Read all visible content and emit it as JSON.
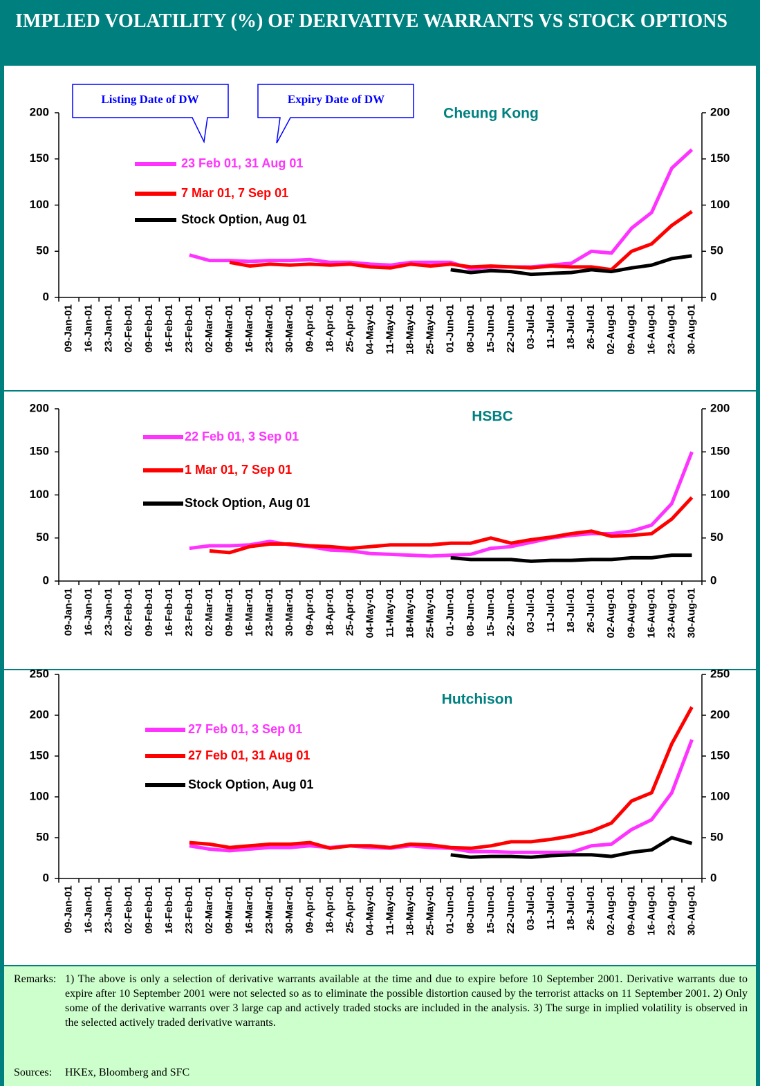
{
  "header": {
    "title": "IMPLIED VOLATILITY (%) OF DERIVATIVE WARRANTS VS STOCK OPTIONS"
  },
  "chart_data": [
    {
      "type": "line",
      "title": "Cheung Kong",
      "annotations": [
        "Listing Date of DW",
        "Expiry Date of DW"
      ],
      "categories": [
        "09-Jan-01",
        "16-Jan-01",
        "23-Jan-01",
        "02-Feb-01",
        "09-Feb-01",
        "16-Feb-01",
        "23-Feb-01",
        "02-Mar-01",
        "09-Mar-01",
        "16-Mar-01",
        "23-Mar-01",
        "30-Mar-01",
        "09-Apr-01",
        "18-Apr-01",
        "25-Apr-01",
        "04-May-01",
        "11-May-01",
        "18-May-01",
        "25-May-01",
        "01-Jun-01",
        "08-Jun-01",
        "15-Jun-01",
        "22-Jun-01",
        "03-Jul-01",
        "11-Jul-01",
        "18-Jul-01",
        "26-Jul-01",
        "02-Aug-01",
        "09-Aug-01",
        "16-Aug-01",
        "23-Aug-01",
        "30-Aug-01"
      ],
      "ylim": [
        0,
        200
      ],
      "yticks": [
        0,
        50,
        100,
        150,
        200
      ],
      "y2lim": [
        0,
        200
      ],
      "y2ticks": [
        0,
        50,
        100,
        150,
        200
      ],
      "series": [
        {
          "name": "23 Feb 01, 31 Aug 01",
          "color": "#ff33ff",
          "values": [
            null,
            null,
            null,
            null,
            null,
            null,
            46,
            40,
            40,
            39,
            40,
            40,
            41,
            38,
            38,
            36,
            35,
            38,
            38,
            38,
            31,
            33,
            33,
            33,
            35,
            37,
            50,
            48,
            75,
            92,
            140,
            160
          ]
        },
        {
          "name": "7 Mar 01, 7 Sep 01",
          "color": "#ff0000",
          "values": [
            null,
            null,
            null,
            null,
            null,
            null,
            null,
            null,
            38,
            34,
            36,
            35,
            36,
            35,
            36,
            33,
            32,
            36,
            34,
            36,
            33,
            34,
            33,
            32,
            34,
            33,
            33,
            30,
            50,
            58,
            78,
            93
          ]
        },
        {
          "name": "Stock Option,  Aug 01",
          "color": "#000000",
          "values": [
            null,
            null,
            null,
            null,
            null,
            null,
            null,
            null,
            null,
            null,
            null,
            null,
            null,
            null,
            null,
            null,
            null,
            null,
            null,
            30,
            27,
            29,
            28,
            25,
            26,
            27,
            30,
            28,
            32,
            35,
            42,
            45
          ]
        }
      ]
    },
    {
      "type": "line",
      "title": "HSBC",
      "categories": [
        "09-Jan-01",
        "16-Jan-01",
        "23-Jan-01",
        "02-Feb-01",
        "09-Feb-01",
        "16-Feb-01",
        "23-Feb-01",
        "02-Mar-01",
        "09-Mar-01",
        "16-Mar-01",
        "23-Mar-01",
        "30-Mar-01",
        "09-Apr-01",
        "18-Apr-01",
        "25-Apr-01",
        "04-May-01",
        "11-May-01",
        "18-May-01",
        "25-May-01",
        "01-Jun-01",
        "08-Jun-01",
        "15-Jun-01",
        "22-Jun-01",
        "03-Jul-01",
        "11-Jul-01",
        "18-Jul-01",
        "26-Jul-01",
        "02-Aug-01",
        "09-Aug-01",
        "16-Aug-01",
        "23-Aug-01",
        "30-Aug-01"
      ],
      "ylim": [
        0,
        200
      ],
      "yticks": [
        0,
        50,
        100,
        150,
        200
      ],
      "y2lim": [
        0,
        200
      ],
      "y2ticks": [
        0,
        50,
        100,
        150,
        200
      ],
      "series": [
        {
          "name": "22 Feb 01, 3 Sep 01",
          "color": "#ff33ff",
          "values": [
            null,
            null,
            null,
            null,
            null,
            null,
            38,
            41,
            41,
            42,
            46,
            42,
            40,
            36,
            35,
            32,
            31,
            30,
            29,
            30,
            31,
            38,
            40,
            45,
            50,
            53,
            55,
            55,
            58,
            65,
            90,
            150
          ]
        },
        {
          "name": "1 Mar 01, 7 Sep 01",
          "color": "#ff0000",
          "values": [
            null,
            null,
            null,
            null,
            null,
            null,
            null,
            35,
            33,
            40,
            43,
            43,
            41,
            40,
            38,
            40,
            42,
            42,
            42,
            44,
            44,
            50,
            44,
            48,
            51,
            55,
            58,
            52,
            53,
            55,
            72,
            97
          ]
        },
        {
          "name": "Stock Option, Aug 01",
          "color": "#000000",
          "values": [
            null,
            null,
            null,
            null,
            null,
            null,
            null,
            null,
            null,
            null,
            null,
            null,
            null,
            null,
            null,
            null,
            null,
            null,
            null,
            27,
            25,
            25,
            25,
            23,
            24,
            24,
            25,
            25,
            27,
            27,
            30,
            30
          ]
        }
      ]
    },
    {
      "type": "line",
      "title": "Hutchison",
      "categories": [
        "09-Jan-01",
        "16-Jan-01",
        "23-Jan-01",
        "02-Feb-01",
        "09-Feb-01",
        "16-Feb-01",
        "23-Feb-01",
        "02-Mar-01",
        "09-Mar-01",
        "16-Mar-01",
        "23-Mar-01",
        "30-Mar-01",
        "09-Apr-01",
        "18-Apr-01",
        "25-Apr-01",
        "04-May-01",
        "11-May-01",
        "18-May-01",
        "25-May-01",
        "01-Jun-01",
        "08-Jun-01",
        "15-Jun-01",
        "22-Jun-01",
        "03-Jul-01",
        "11-Jul-01",
        "18-Jul-01",
        "26-Jul-01",
        "02-Aug-01",
        "09-Aug-01",
        "16-Aug-01",
        "23-Aug-01",
        "30-Aug-01"
      ],
      "ylim": [
        0,
        250
      ],
      "yticks": [
        0,
        50,
        100,
        150,
        200,
        250
      ],
      "y2lim": [
        0,
        250
      ],
      "y2ticks": [
        0,
        50,
        100,
        150,
        200,
        250
      ],
      "series": [
        {
          "name": "27 Feb 01, 3 Sep 01",
          "color": "#ff33ff",
          "values": [
            null,
            null,
            null,
            null,
            null,
            null,
            40,
            36,
            34,
            36,
            38,
            38,
            40,
            38,
            40,
            38,
            37,
            40,
            38,
            37,
            33,
            33,
            32,
            32,
            32,
            32,
            40,
            42,
            60,
            72,
            105,
            170
          ]
        },
        {
          "name": "27 Feb 01, 31 Aug 01",
          "color": "#ff0000",
          "values": [
            null,
            null,
            null,
            null,
            null,
            null,
            44,
            42,
            38,
            40,
            42,
            42,
            44,
            37,
            40,
            40,
            38,
            42,
            41,
            38,
            37,
            40,
            45,
            45,
            48,
            52,
            58,
            68,
            95,
            105,
            165,
            210
          ]
        },
        {
          "name": "Stock Option, Aug 01",
          "color": "#000000",
          "values": [
            null,
            null,
            null,
            null,
            null,
            null,
            null,
            null,
            null,
            null,
            null,
            null,
            null,
            null,
            null,
            null,
            null,
            null,
            null,
            29,
            26,
            27,
            27,
            26,
            28,
            29,
            29,
            27,
            32,
            35,
            50,
            43
          ]
        }
      ]
    }
  ],
  "remarks": {
    "label": "Remarks:",
    "text": "1) The above is only a selection of derivative warrants available at the time and due to expire before 10 September 2001.  Derivative warrants due to expire after 10 September 2001 were not selected so as to eliminate the possible distortion caused by the terrorist attacks on 11 September 2001.  2) Only some of the derivative warrants over 3 large cap and actively traded stocks are included in the analysis.  3) The surge in implied volatility is observed in the selected actively traded derivative warrants."
  },
  "sources": {
    "label": "Sources:",
    "text": "HKEx, Bloomberg and SFC"
  }
}
